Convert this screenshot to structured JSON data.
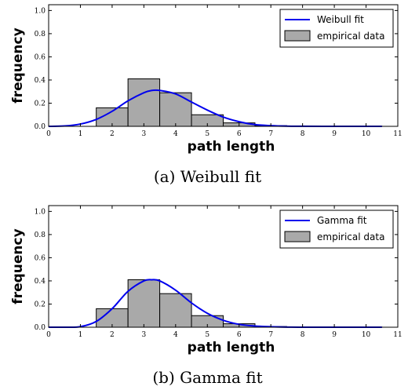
{
  "chart_data": [
    {
      "type": "bar",
      "caption": "(a) Weibull fit",
      "xlabel": "path length",
      "ylabel": "frequency",
      "xlim": [
        0,
        11
      ],
      "ylim": [
        0,
        1.05
      ],
      "xticks": [
        "0",
        "1",
        "2",
        "3",
        "4",
        "5",
        "6",
        "7",
        "8",
        "9",
        "10",
        "11"
      ],
      "yticks": [
        "0.0",
        "0.2",
        "0.4",
        "0.6",
        "0.8",
        "1.0"
      ],
      "legend": [
        "Weibull fit",
        "empirical data"
      ],
      "legend_position": "top-right",
      "bins": [
        {
          "x0": 1.5,
          "x1": 2.5,
          "value": 0.16
        },
        {
          "x0": 2.5,
          "x1": 3.5,
          "value": 0.41
        },
        {
          "x0": 3.5,
          "x1": 4.5,
          "value": 0.29
        },
        {
          "x0": 4.5,
          "x1": 5.5,
          "value": 0.1
        },
        {
          "x0": 5.5,
          "x1": 6.5,
          "value": 0.03
        },
        {
          "x0": 6.5,
          "x1": 7.5,
          "value": 0.006
        },
        {
          "x0": 7.5,
          "x1": 8.5,
          "value": 0.002
        },
        {
          "x0": 8.5,
          "x1": 9.5,
          "value": 0.001
        },
        {
          "x0": 9.5,
          "x1": 10.5,
          "value": 0.001
        }
      ],
      "fit": {
        "name": "Weibull fit",
        "x": [
          0,
          0.5,
          1,
          1.5,
          2,
          2.5,
          3,
          3.25,
          3.5,
          4,
          4.5,
          5,
          5.5,
          6,
          6.5,
          7,
          7.5,
          8,
          9,
          10,
          10.5
        ],
        "y": [
          0,
          0.003,
          0.02,
          0.06,
          0.13,
          0.22,
          0.29,
          0.31,
          0.31,
          0.28,
          0.21,
          0.14,
          0.08,
          0.04,
          0.015,
          0.006,
          0.002,
          0.001,
          0,
          0,
          0
        ]
      },
      "colors": {
        "bar_fill": "#a9a9a9",
        "bar_edge": "#000000",
        "fit_line": "#0000ee"
      }
    },
    {
      "type": "bar",
      "caption": "(b) Gamma fit",
      "xlabel": "path length",
      "ylabel": "frequency",
      "xlim": [
        0,
        11
      ],
      "ylim": [
        0,
        1.05
      ],
      "xticks": [
        "0",
        "1",
        "2",
        "3",
        "4",
        "5",
        "6",
        "7",
        "8",
        "9",
        "10",
        "11"
      ],
      "yticks": [
        "0.0",
        "0.2",
        "0.4",
        "0.6",
        "0.8",
        "1.0"
      ],
      "legend": [
        "Gamma fit",
        "empirical data"
      ],
      "legend_position": "top-right",
      "bins": [
        {
          "x0": 1.5,
          "x1": 2.5,
          "value": 0.16
        },
        {
          "x0": 2.5,
          "x1": 3.5,
          "value": 0.41
        },
        {
          "x0": 3.5,
          "x1": 4.5,
          "value": 0.29
        },
        {
          "x0": 4.5,
          "x1": 5.5,
          "value": 0.1
        },
        {
          "x0": 5.5,
          "x1": 6.5,
          "value": 0.03
        },
        {
          "x0": 6.5,
          "x1": 7.5,
          "value": 0.006
        },
        {
          "x0": 7.5,
          "x1": 8.5,
          "value": 0.002
        },
        {
          "x0": 8.5,
          "x1": 9.5,
          "value": 0.001
        },
        {
          "x0": 9.5,
          "x1": 10.5,
          "value": 0.001
        }
      ],
      "fit": {
        "name": "Gamma fit",
        "x": [
          0,
          0.5,
          1,
          1.5,
          2,
          2.5,
          3,
          3.25,
          3.5,
          4,
          4.5,
          5,
          5.5,
          6,
          6.5,
          7,
          7.5,
          8,
          9,
          10,
          10.5
        ],
        "y": [
          0,
          0,
          0.005,
          0.05,
          0.16,
          0.31,
          0.4,
          0.41,
          0.4,
          0.32,
          0.21,
          0.12,
          0.06,
          0.025,
          0.01,
          0.004,
          0.001,
          0,
          0,
          0,
          0
        ]
      },
      "colors": {
        "bar_fill": "#a9a9a9",
        "bar_edge": "#000000",
        "fit_line": "#0000ee"
      }
    }
  ]
}
